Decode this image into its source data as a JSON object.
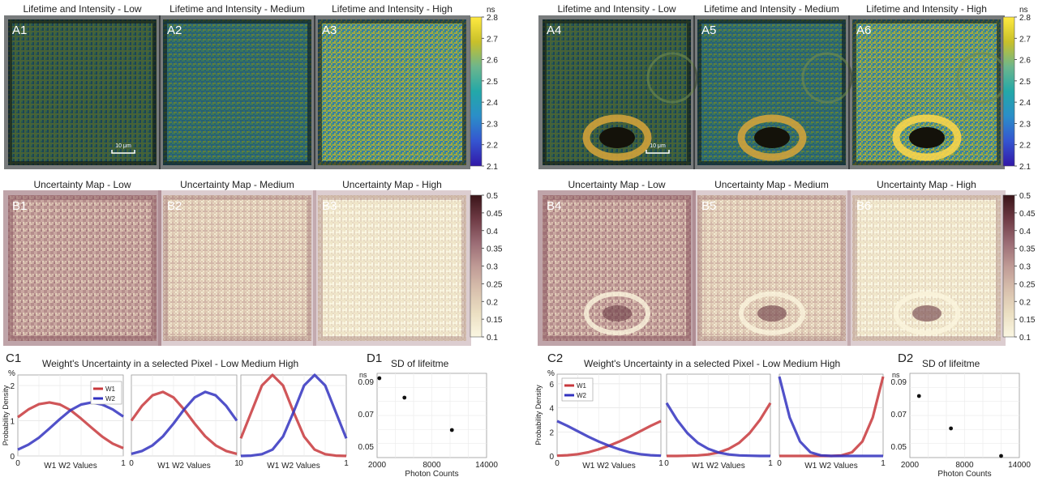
{
  "panels_top": [
    {
      "label": "A1",
      "title": "Lifetime and Intensity - Low",
      "scalebar": "10 μm"
    },
    {
      "label": "A2",
      "title": "Lifetime and Intensity - Medium"
    },
    {
      "label": "A3",
      "title": "Lifetime and Intensity - High"
    },
    {
      "label": "A4",
      "title": "Lifetime and Intensity - Low",
      "scalebar": "10 μm"
    },
    {
      "label": "A5",
      "title": "Lifetime and Intensity - Medium"
    },
    {
      "label": "A6",
      "title": "Lifetime and Intensity - High"
    }
  ],
  "panels_mid": [
    {
      "label": "B1",
      "title": "Uncertainty Map - Low"
    },
    {
      "label": "B2",
      "title": "Uncertainty Map - Medium"
    },
    {
      "label": "B3",
      "title": "Uncertainty Map - High"
    },
    {
      "label": "B4",
      "title": "Uncertainty Map - Low"
    },
    {
      "label": "B5",
      "title": "Uncertainty Map - Medium"
    },
    {
      "label": "B6",
      "title": "Uncertainty Map - High"
    }
  ],
  "colorbar_lifetime": {
    "unit": "ns",
    "ticks": [
      "2.8",
      "2.7",
      "2.6",
      "2.5",
      "2.4",
      "2.3",
      "2.2",
      "2.1"
    ],
    "colors": [
      "#ffe940",
      "#c8c02a",
      "#6db68c",
      "#23a8a8",
      "#2b8ec8",
      "#3555d0",
      "#3218a8"
    ]
  },
  "colorbar_uncertainty": {
    "ticks": [
      "0.5",
      "0.45",
      "0.4",
      "0.35",
      "0.3",
      "0.25",
      "0.2",
      "0.15",
      "0.1"
    ],
    "colors": [
      "#3a1418",
      "#6e3a44",
      "#9a6b74",
      "#bf9a95",
      "#d8c0ad",
      "#ebdfc2",
      "#fbf7e2"
    ]
  },
  "chart_data": [
    {
      "type": "line",
      "panel": "C1",
      "title": "Weight's Uncertainty in a selected Pixel - Low Medium High",
      "ylabel": "Probability Density",
      "yunit": "%",
      "xlabel": "W1 W2 Values",
      "xlim": [
        0,
        1
      ],
      "ylim": [
        0,
        2.3
      ],
      "yticks": [
        "0",
        "1",
        "2"
      ],
      "xticks": [
        "0",
        "1"
      ],
      "legend": {
        "position": "top-right",
        "entries": [
          "W1",
          "W2"
        ]
      },
      "subplots": [
        {
          "name": "Low",
          "series": [
            {
              "name": "W1",
              "color": "#c8383c",
              "x": [
                0,
                0.1,
                0.2,
                0.3,
                0.4,
                0.5,
                0.6,
                0.7,
                0.8,
                0.9,
                1.0
              ],
              "values": [
                1.1,
                1.32,
                1.47,
                1.52,
                1.46,
                1.3,
                1.06,
                0.8,
                0.55,
                0.35,
                0.22
              ]
            },
            {
              "name": "W2",
              "color": "#3232c0",
              "x": [
                0,
                0.1,
                0.2,
                0.3,
                0.4,
                0.5,
                0.6,
                0.7,
                0.8,
                0.9,
                1.0
              ],
              "values": [
                0.18,
                0.32,
                0.52,
                0.78,
                1.05,
                1.3,
                1.46,
                1.52,
                1.46,
                1.32,
                1.12
              ]
            }
          ]
        },
        {
          "name": "Medium",
          "series": [
            {
              "name": "W1",
              "color": "#c8383c",
              "x": [
                0,
                0.1,
                0.2,
                0.3,
                0.4,
                0.5,
                0.6,
                0.7,
                0.8,
                0.9,
                1.0
              ],
              "values": [
                1.0,
                1.42,
                1.72,
                1.82,
                1.66,
                1.32,
                0.92,
                0.56,
                0.3,
                0.14,
                0.06
              ]
            },
            {
              "name": "W2",
              "color": "#3232c0",
              "x": [
                0,
                0.1,
                0.2,
                0.3,
                0.4,
                0.5,
                0.6,
                0.7,
                0.8,
                0.9,
                1.0
              ],
              "values": [
                0.06,
                0.14,
                0.3,
                0.56,
                0.92,
                1.32,
                1.66,
                1.82,
                1.72,
                1.42,
                1.0
              ]
            }
          ]
        },
        {
          "name": "High",
          "series": [
            {
              "name": "W1",
              "color": "#c8383c",
              "x": [
                0,
                0.1,
                0.2,
                0.3,
                0.4,
                0.5,
                0.6,
                0.7,
                0.8,
                0.9,
                1.0
              ],
              "values": [
                0.5,
                1.25,
                2.0,
                2.3,
                2.0,
                1.25,
                0.55,
                0.18,
                0.05,
                0.01,
                0.0
              ]
            },
            {
              "name": "W2",
              "color": "#3232c0",
              "x": [
                0,
                0.1,
                0.2,
                0.3,
                0.4,
                0.5,
                0.6,
                0.7,
                0.8,
                0.9,
                1.0
              ],
              "values": [
                0.0,
                0.01,
                0.05,
                0.18,
                0.55,
                1.25,
                2.0,
                2.3,
                2.0,
                1.25,
                0.5
              ]
            }
          ]
        }
      ]
    },
    {
      "type": "scatter",
      "panel": "D1",
      "title": "SD of lifeitme",
      "yunit": "ns",
      "xlabel": "Photon Counts",
      "xlim": [
        2000,
        14000
      ],
      "ylim": [
        0.043,
        0.095
      ],
      "xticks": [
        "2000",
        "8000",
        "14000"
      ],
      "yticks": [
        "0.09",
        "0.07",
        "0.05"
      ],
      "x": [
        2250,
        5000,
        10200
      ],
      "y": [
        0.092,
        0.08,
        0.06
      ]
    },
    {
      "type": "line",
      "panel": "C2",
      "title": "Weight's Uncertainty in a selected Pixel - Low Medium High",
      "ylabel": "Probability Density",
      "yunit": "%",
      "xlabel": "W1 W2 Values",
      "xlim": [
        0,
        1
      ],
      "ylim": [
        0,
        6.8
      ],
      "yticks": [
        "0",
        "2",
        "4",
        "6"
      ],
      "xticks": [
        "0",
        "1"
      ],
      "legend": {
        "position": "top-left",
        "entries": [
          "W1",
          "W2"
        ]
      },
      "subplots": [
        {
          "name": "Low",
          "series": [
            {
              "name": "W1",
              "color": "#c8383c",
              "x": [
                0,
                0.1,
                0.2,
                0.3,
                0.4,
                0.5,
                0.6,
                0.7,
                0.8,
                0.9,
                1.0
              ],
              "values": [
                0.02,
                0.06,
                0.15,
                0.3,
                0.55,
                0.85,
                1.2,
                1.6,
                2.05,
                2.5,
                2.9
              ]
            },
            {
              "name": "W2",
              "color": "#3232c0",
              "x": [
                0,
                0.1,
                0.2,
                0.3,
                0.4,
                0.5,
                0.6,
                0.7,
                0.8,
                0.9,
                1.0
              ],
              "values": [
                2.9,
                2.5,
                2.05,
                1.6,
                1.2,
                0.85,
                0.55,
                0.3,
                0.15,
                0.06,
                0.02
              ]
            }
          ]
        },
        {
          "name": "Medium",
          "series": [
            {
              "name": "W1",
              "color": "#c8383c",
              "x": [
                0,
                0.1,
                0.2,
                0.3,
                0.4,
                0.5,
                0.6,
                0.7,
                0.8,
                0.9,
                1.0
              ],
              "values": [
                0.0,
                0.0,
                0.02,
                0.05,
                0.12,
                0.28,
                0.6,
                1.1,
                1.9,
                3.0,
                4.4
              ]
            },
            {
              "name": "W2",
              "color": "#3232c0",
              "x": [
                0,
                0.1,
                0.2,
                0.3,
                0.4,
                0.5,
                0.6,
                0.7,
                0.8,
                0.9,
                1.0
              ],
              "values": [
                4.4,
                3.0,
                1.9,
                1.1,
                0.6,
                0.28,
                0.12,
                0.05,
                0.02,
                0.0,
                0.0
              ]
            }
          ]
        },
        {
          "name": "High",
          "series": [
            {
              "name": "W1",
              "color": "#c8383c",
              "x": [
                0,
                0.1,
                0.2,
                0.3,
                0.4,
                0.5,
                0.6,
                0.7,
                0.8,
                0.9,
                1.0
              ],
              "values": [
                0.0,
                0.0,
                0.0,
                0.0,
                0.0,
                0.0,
                0.05,
                0.3,
                1.2,
                3.2,
                6.6
              ]
            },
            {
              "name": "W2",
              "color": "#3232c0",
              "x": [
                0,
                0.1,
                0.2,
                0.3,
                0.4,
                0.5,
                0.6,
                0.7,
                0.8,
                0.9,
                1.0
              ],
              "values": [
                6.6,
                3.2,
                1.2,
                0.3,
                0.05,
                0.0,
                0.0,
                0.0,
                0.0,
                0.0,
                0.0
              ]
            }
          ]
        }
      ]
    },
    {
      "type": "scatter",
      "panel": "D2",
      "title": "SD of lifeitme",
      "yunit": "ns",
      "xlabel": "Photon Counts",
      "xlim": [
        2000,
        14000
      ],
      "ylim": [
        0.043,
        0.095
      ],
      "xticks": [
        "2000",
        "8000",
        "14000"
      ],
      "yticks": [
        "0.09",
        "0.07",
        "0.05"
      ],
      "x": [
        3000,
        6500,
        12000
      ],
      "y": [
        0.081,
        0.061,
        0.044
      ]
    }
  ]
}
